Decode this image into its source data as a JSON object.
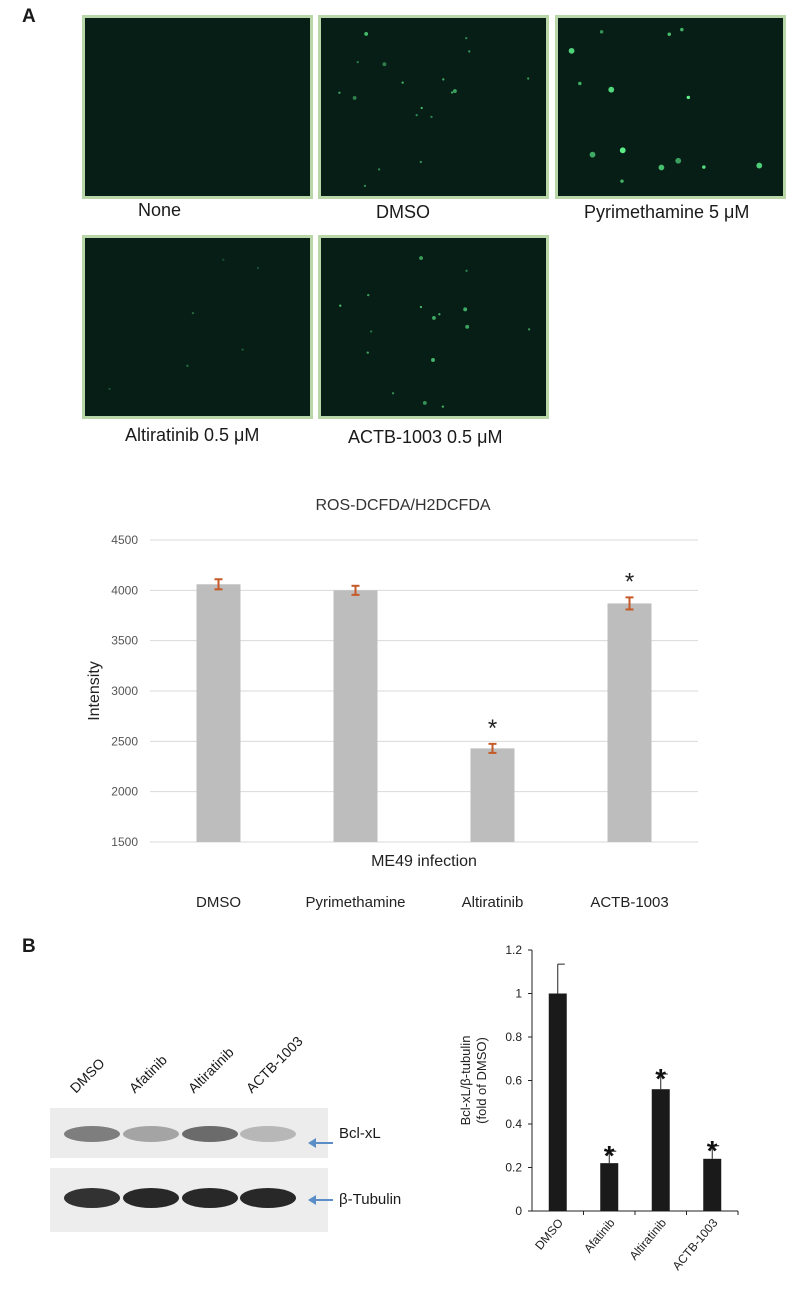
{
  "panels": {
    "a": "A",
    "b": "B"
  },
  "micrographs": [
    {
      "label": "None"
    },
    {
      "label": "DMSO"
    },
    {
      "label": "Pyrimethamine 5 μM"
    },
    {
      "label": "Altiratinib 0.5 μM"
    },
    {
      "label": "ACTB-1003 0.5 μM"
    }
  ],
  "chart_data": [
    {
      "type": "bar",
      "title": "ROS-DCFDA/H2DCFDA",
      "xlabel": "ME49 infection",
      "ylabel": "Intensity",
      "categories": [
        "DMSO",
        "Pyrimethamine",
        "Altiratinib",
        "ACTB-1003"
      ],
      "values": [
        4060,
        4000,
        2430,
        3870
      ],
      "errors": [
        50,
        45,
        45,
        60
      ],
      "significance": [
        "",
        "",
        "*",
        "*"
      ],
      "ylim": [
        1500,
        4500
      ],
      "yticks": [
        1500,
        2000,
        2500,
        3000,
        3500,
        4000,
        4500
      ],
      "grid": true,
      "bar_color": "#bdbdbd",
      "error_color": "#c55a28"
    },
    {
      "type": "bar",
      "ylabel": "Bcl-xL/β-tubulin\n(fold of DMSO)",
      "categories": [
        "DMSO",
        "Afatinib",
        "Altiratinib",
        "ACTB-1003"
      ],
      "values": [
        1.0,
        0.22,
        0.56,
        0.24
      ],
      "errors": [
        0.135,
        0.055,
        0.07,
        0.06
      ],
      "significance": [
        "",
        "*",
        "*",
        "*"
      ],
      "ylim": [
        0,
        1.2
      ],
      "yticks": [
        "0",
        "0.2",
        "0.4",
        "0.6",
        "0.8",
        "1",
        "1.2"
      ],
      "bar_color": "#1a1a1a"
    }
  ],
  "blot": {
    "lanes": [
      "DMSO",
      "Afatinib",
      "Altiratinib",
      "ACTB-1003"
    ],
    "bands": [
      {
        "label": "Bcl-xL",
        "intensity": [
          0.55,
          0.35,
          0.65,
          0.25
        ]
      },
      {
        "label": "β-Tubulin",
        "intensity": [
          0.95,
          1.0,
          1.0,
          1.0
        ]
      }
    ]
  }
}
